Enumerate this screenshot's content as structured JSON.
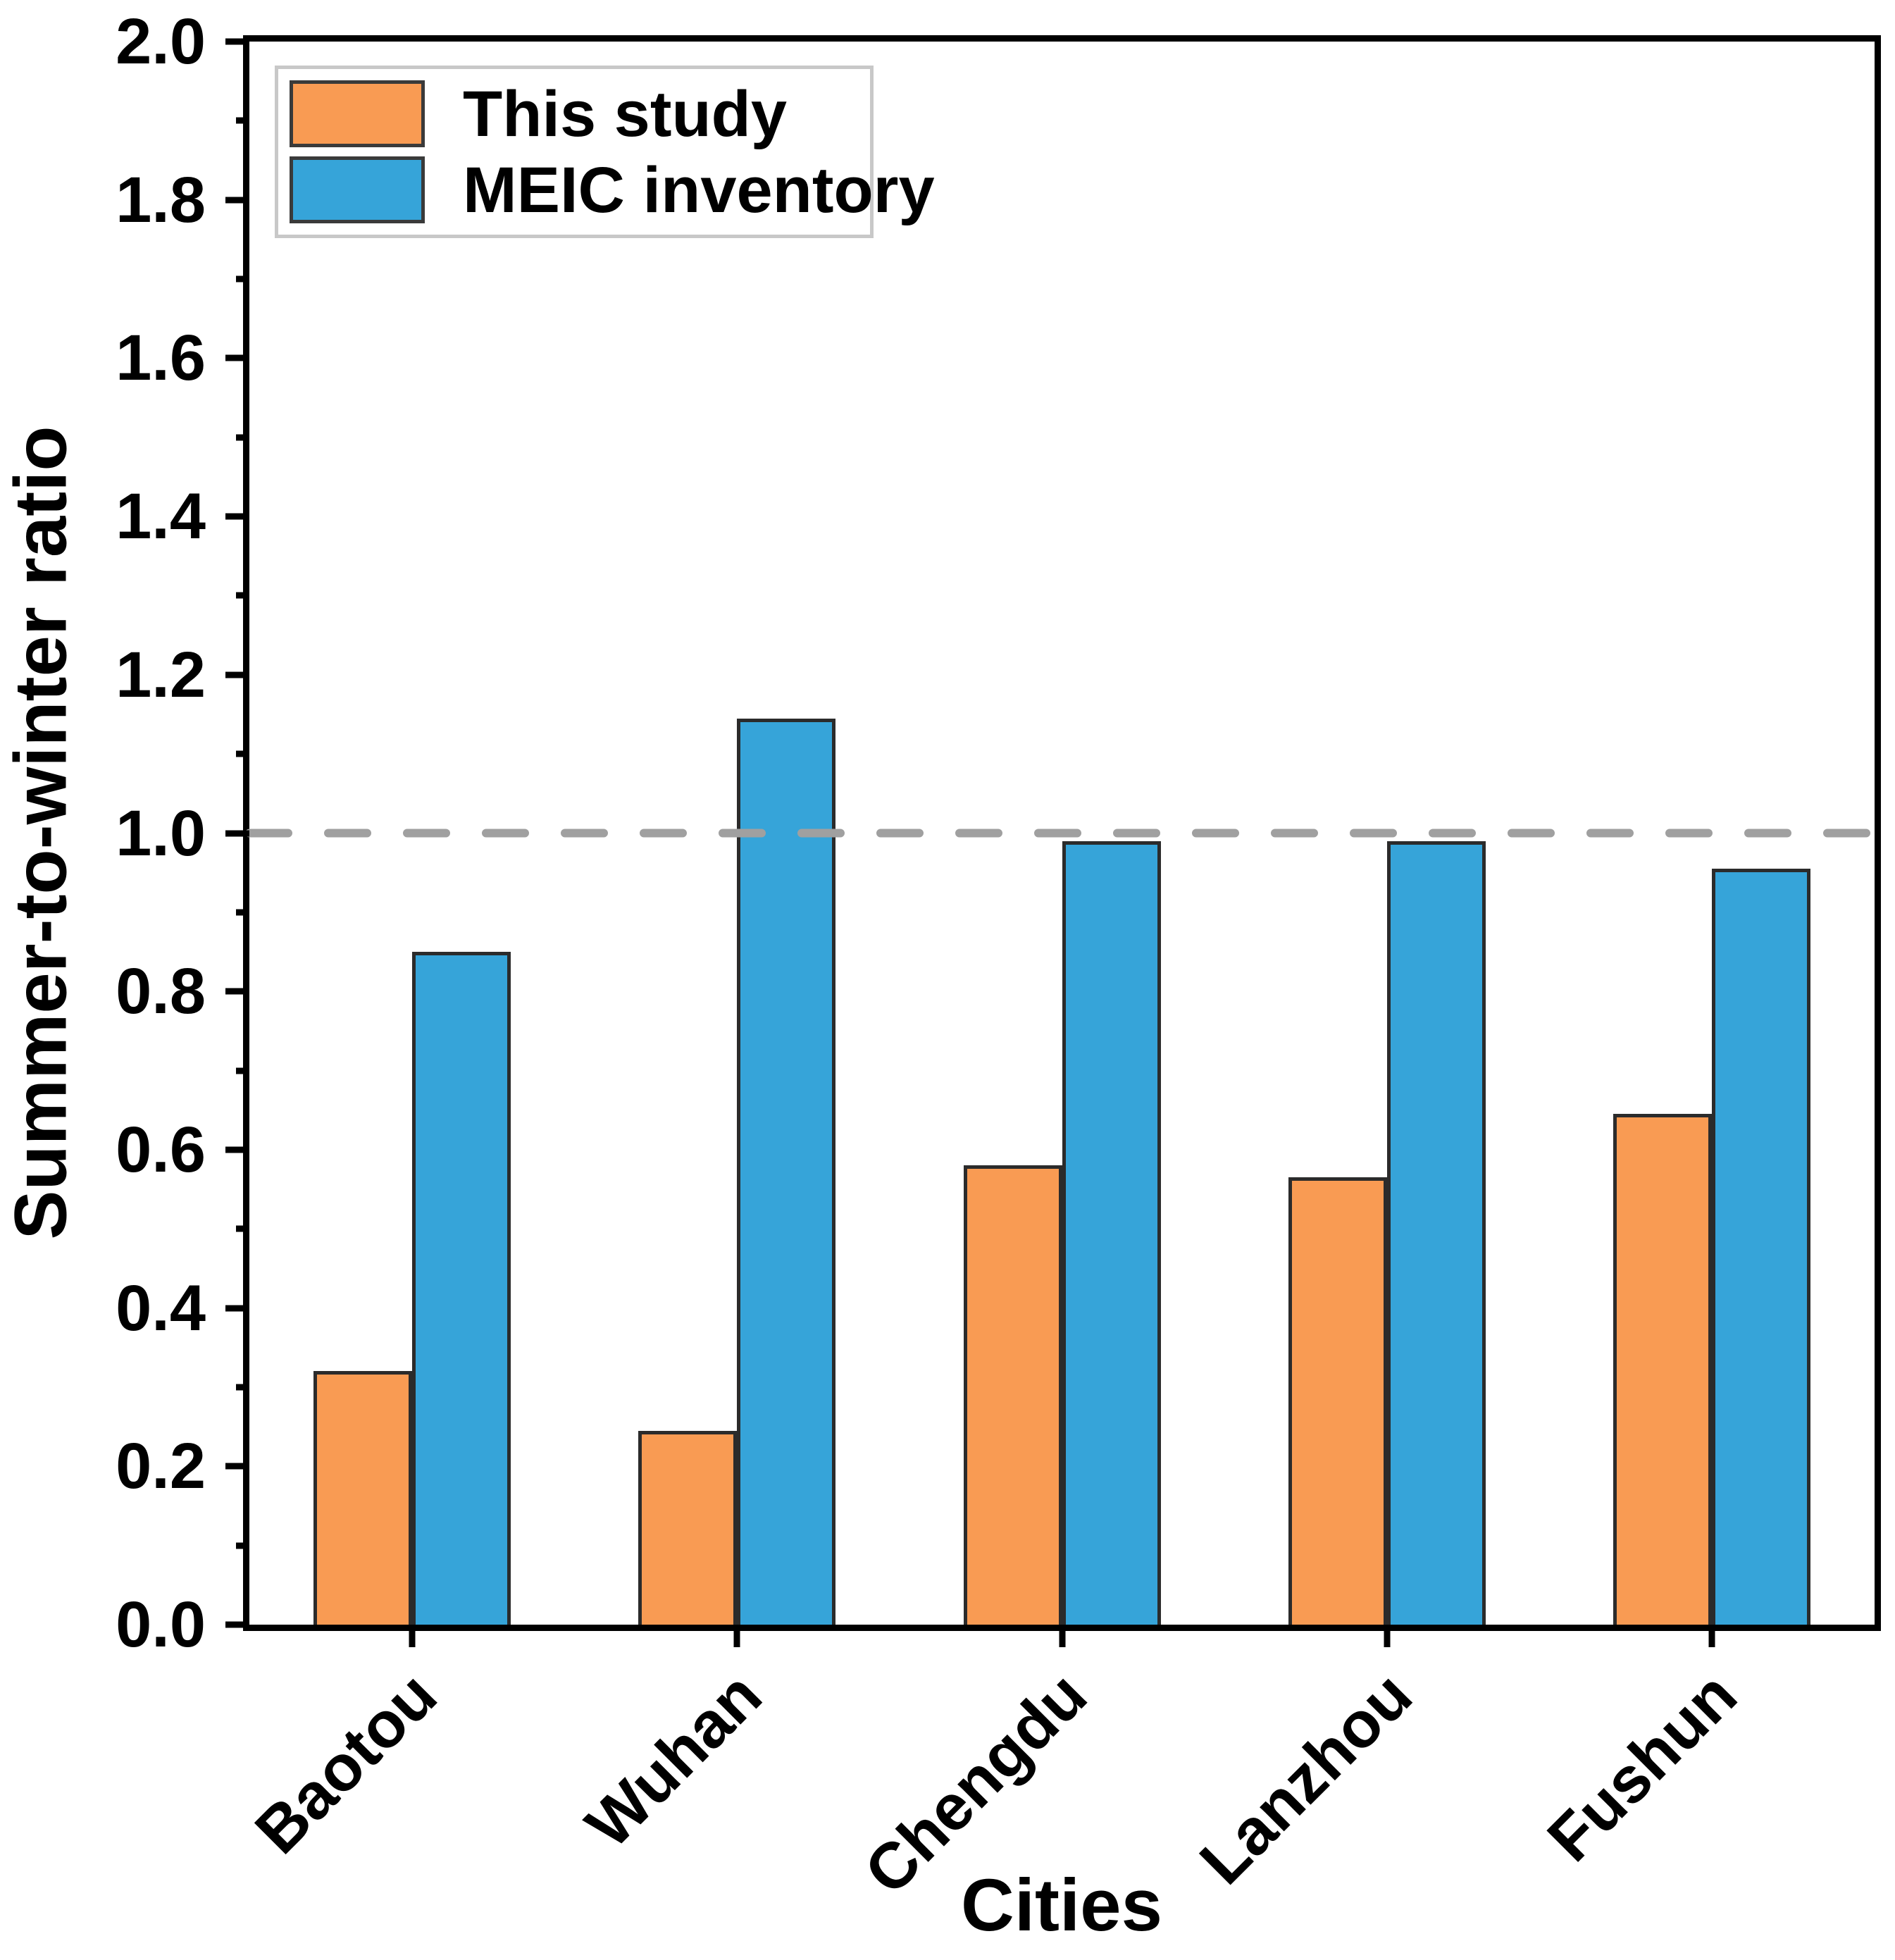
{
  "figure": {
    "background": "#FFFFFF"
  },
  "chart_data": {
    "type": "bar",
    "title": "",
    "categories": [
      "Baotou",
      "Wuhan",
      "Chengdu",
      "Lanzhou",
      "Fushun"
    ],
    "series": [
      {
        "name": "This study",
        "color": "#F99B53",
        "values": [
          0.32,
          0.245,
          0.58,
          0.565,
          0.645
        ]
      },
      {
        "name": "MEIC inventory",
        "color": "#36A4D9",
        "values": [
          0.85,
          1.145,
          0.99,
          0.99,
          0.955
        ]
      }
    ],
    "xlabel": "Cities",
    "ylabel": "Summer-to-winter ratio",
    "ylim": [
      0.0,
      2.0
    ],
    "y_major_step": 0.2,
    "y_minor_step": 0.1,
    "y_tick_labels": [
      "0.0",
      "0.2",
      "0.4",
      "0.6",
      "0.8",
      "1.0",
      "1.2",
      "1.4",
      "1.6",
      "1.8",
      "2.0"
    ],
    "reference_line": {
      "y": 1.0,
      "style": "dashed",
      "color": "#A0A0A0"
    },
    "legend": {
      "position": "top-left",
      "entries": [
        "This study",
        "MEIC inventory"
      ]
    },
    "grid": false,
    "bar_border_color": "#2B2B2B",
    "axis_color": "#000000"
  }
}
